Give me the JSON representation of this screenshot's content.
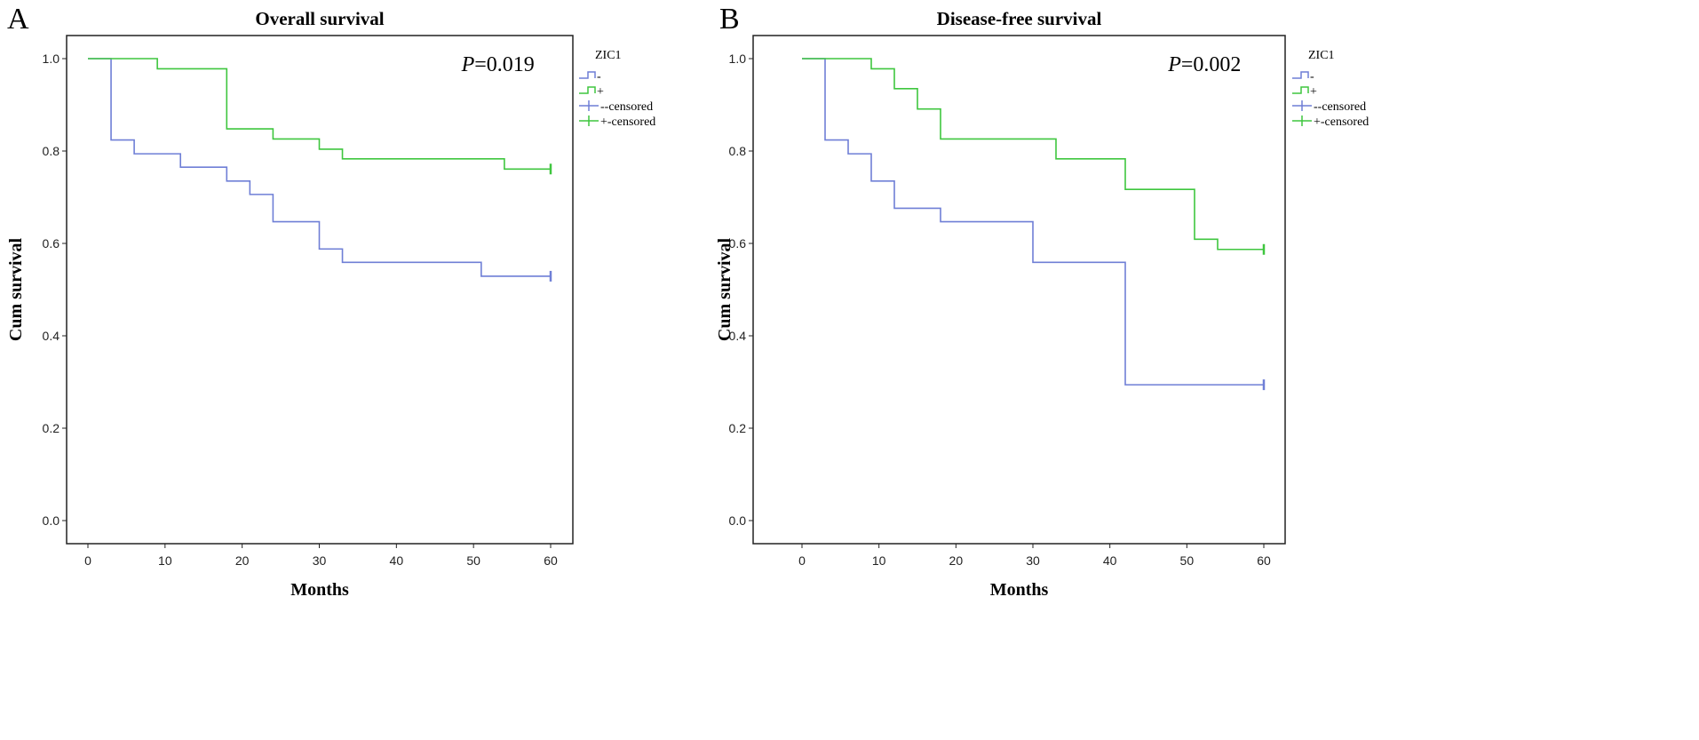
{
  "chart_data": [
    {
      "type": "line",
      "panel_label": "A",
      "title": "Overall survival",
      "xlabel": "Months",
      "ylabel": "Cum survival",
      "xlim": [
        0,
        60
      ],
      "ylim": [
        0,
        1.0
      ],
      "xticks": [
        "0",
        "10",
        "20",
        "30",
        "40",
        "50",
        "60"
      ],
      "yticks": [
        "0.0",
        "0.2",
        "0.4",
        "0.6",
        "0.8",
        "1.0"
      ],
      "annotation": {
        "italic": "P",
        "text": "=0.019"
      },
      "legend": {
        "title": "ZIC1",
        "position": "right",
        "entries": [
          "-",
          "+",
          "--censored",
          "+-censored"
        ]
      },
      "series": [
        {
          "name": "-",
          "color": "#6f7fd6",
          "step_times": [
            0,
            3,
            6,
            12,
            18,
            21,
            24,
            30,
            33,
            51
          ],
          "survival": [
            1.0,
            0.824,
            0.794,
            0.765,
            0.735,
            0.706,
            0.647,
            0.588,
            0.559,
            0.529
          ],
          "end": 60,
          "censored": [
            60
          ]
        },
        {
          "name": "+",
          "color": "#3fc63f",
          "step_times": [
            0,
            9,
            18,
            24,
            30,
            33,
            54
          ],
          "survival": [
            1.0,
            0.978,
            0.848,
            0.826,
            0.804,
            0.783,
            0.761
          ],
          "end": 60,
          "censored": [
            60
          ]
        }
      ]
    },
    {
      "type": "line",
      "panel_label": "B",
      "title": "Disease-free survival",
      "xlabel": "Months",
      "ylabel": "Cum survival",
      "xlim": [
        0,
        60
      ],
      "ylim": [
        0,
        1.0
      ],
      "xticks": [
        "0",
        "10",
        "20",
        "30",
        "40",
        "50",
        "60"
      ],
      "yticks": [
        "0.0",
        "0.2",
        "0.4",
        "0.6",
        "0.8",
        "1.0"
      ],
      "annotation": {
        "italic": "P",
        "text": "=0.002"
      },
      "legend": {
        "title": "ZIC1",
        "position": "right",
        "entries": [
          "-",
          "+",
          "--censored",
          "+-censored"
        ]
      },
      "series": [
        {
          "name": "-",
          "color": "#6f7fd6",
          "step_times": [
            0,
            3,
            6,
            9,
            12,
            18,
            30,
            42
          ],
          "survival": [
            1.0,
            0.824,
            0.794,
            0.735,
            0.676,
            0.647,
            0.559,
            0.294
          ],
          "end": 60,
          "censored": [
            60
          ]
        },
        {
          "name": "+",
          "color": "#3fc63f",
          "step_times": [
            0,
            9,
            12,
            15,
            18,
            33,
            42,
            51,
            54
          ],
          "survival": [
            1.0,
            0.978,
            0.935,
            0.891,
            0.826,
            0.783,
            0.717,
            0.609,
            0.587
          ],
          "end": 60,
          "censored": [
            60
          ]
        }
      ]
    }
  ]
}
